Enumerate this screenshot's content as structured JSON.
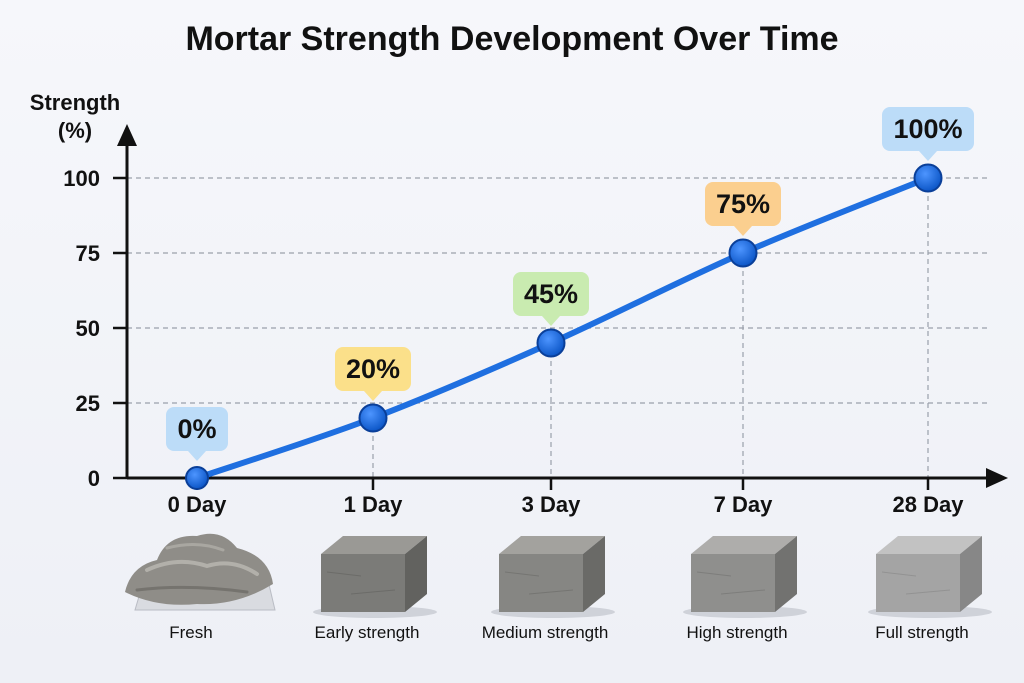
{
  "chart_data": {
    "type": "line",
    "title": "Mortar Strength Development Over Time",
    "ylabel_line1": "Strength",
    "ylabel_line2": "(%)",
    "categories": [
      "0 Day",
      "1 Day",
      "3 Day",
      "7 Day",
      "28 Day"
    ],
    "values": [
      0,
      20,
      45,
      75,
      100
    ],
    "data_labels": [
      "0%",
      "20%",
      "45%",
      "75%",
      "100%"
    ],
    "stage_labels": [
      "Fresh",
      "Early strength",
      "Medium strength",
      "High strength",
      "Full strength"
    ],
    "yticks": [
      "0",
      "25",
      "50",
      "75",
      "100"
    ],
    "ylim": [
      0,
      100
    ],
    "grid": true,
    "line_color": "#1f6fe0",
    "marker_color": "#1f6fe0",
    "label_colors": [
      "#bcdcf8",
      "#fbe08a",
      "#c9ebb0",
      "#fbcf8f",
      "#bcdcf8"
    ],
    "sample_images": [
      "wet-mortar-pile",
      "mortar-block",
      "mortar-block",
      "mortar-block",
      "mortar-block"
    ]
  }
}
